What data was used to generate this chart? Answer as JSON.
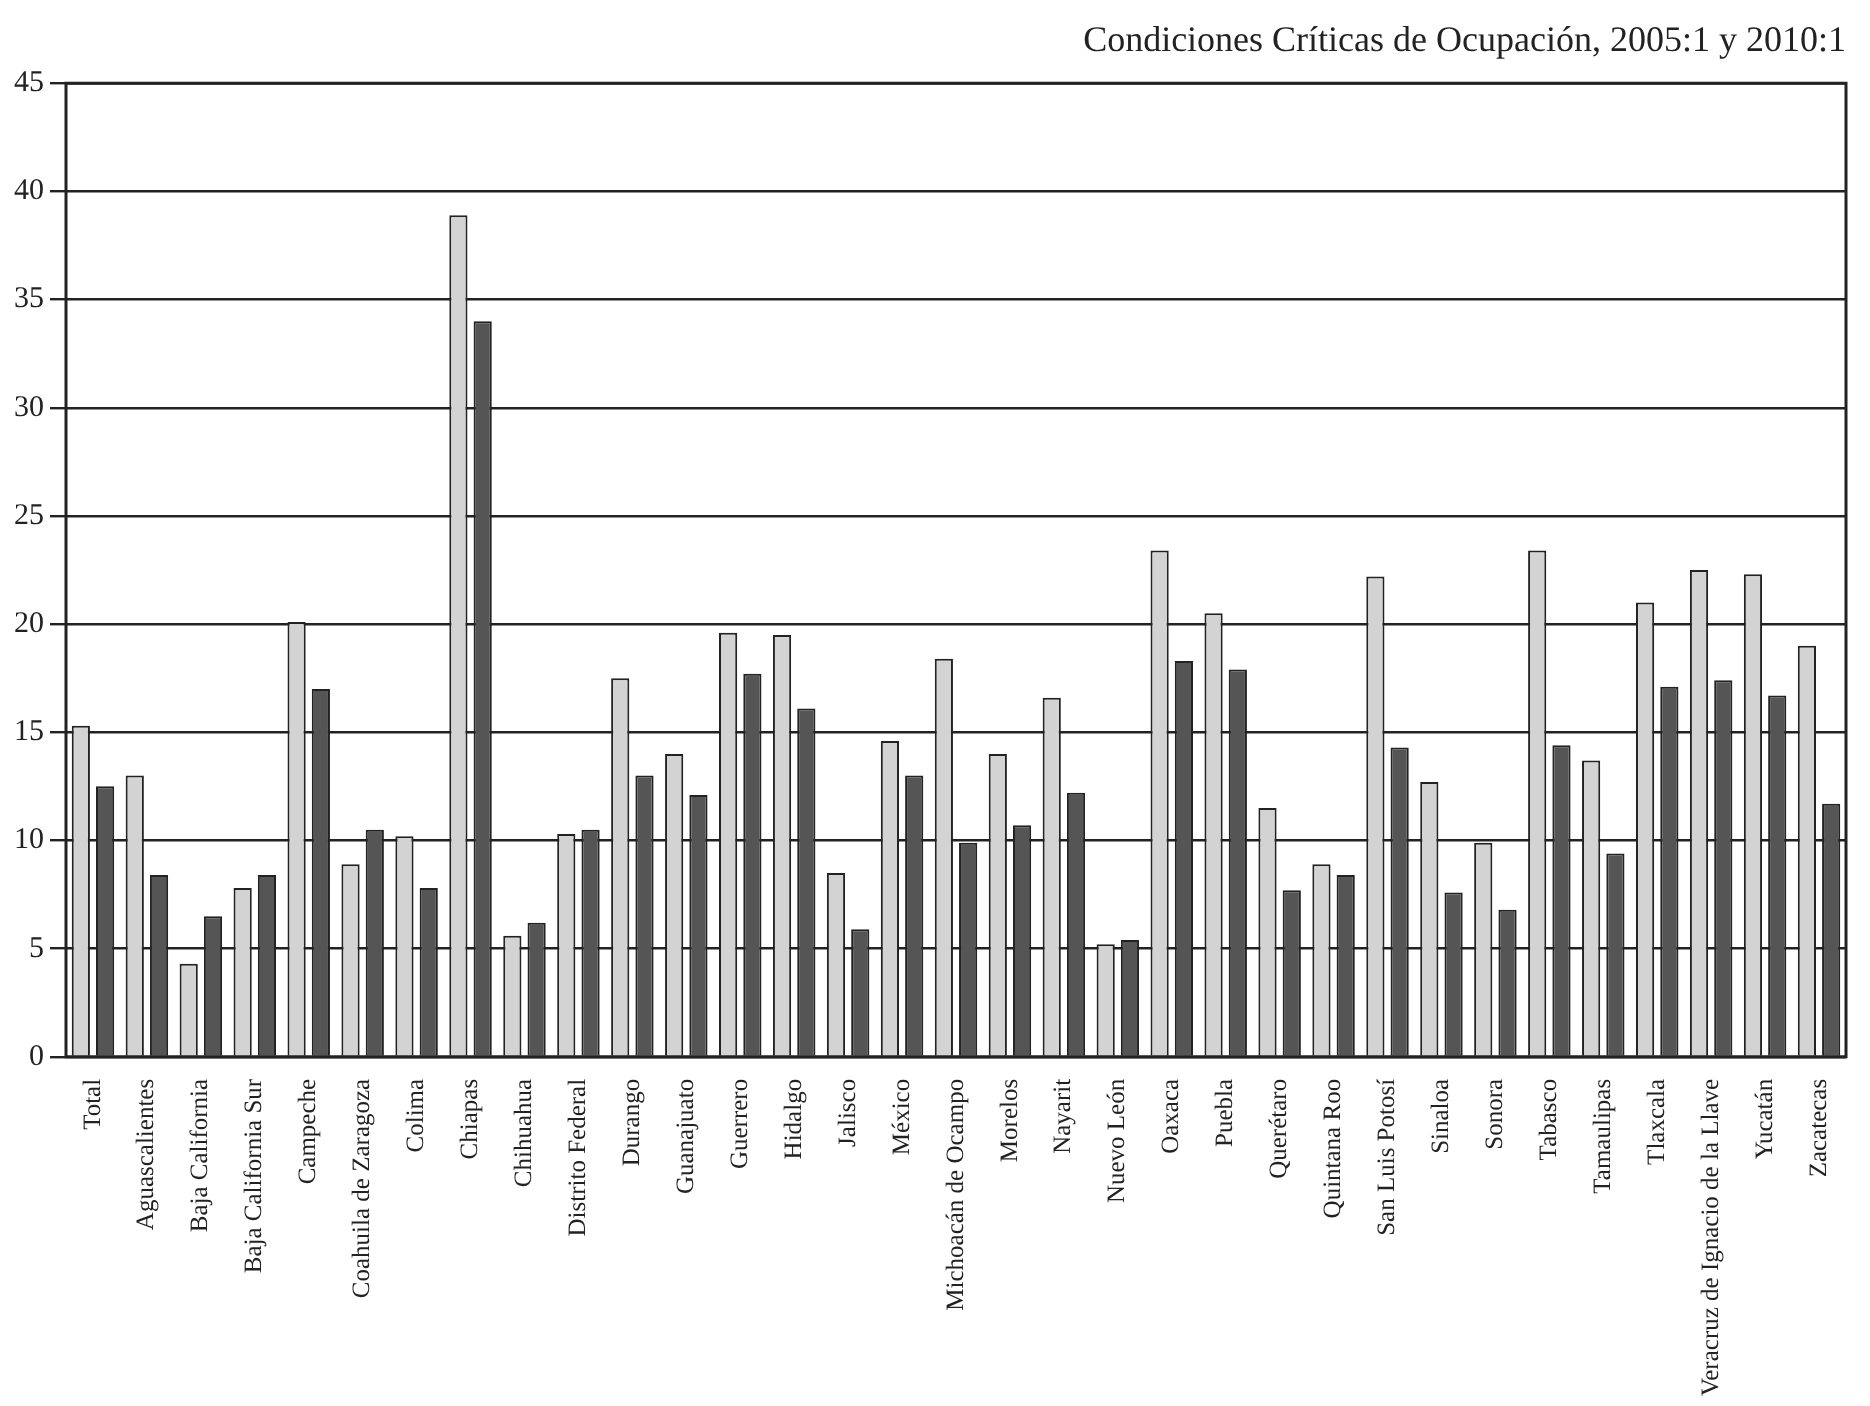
{
  "chart_data": {
    "type": "bar",
    "title": "Condiciones Críticas de Ocupación, 2005:1 y 2010:1",
    "categories": [
      "Total",
      "Aguascalientes",
      "Baja California",
      "Baja California Sur",
      "Campeche",
      "Coahuila de Zaragoza",
      "Colima",
      "Chiapas",
      "Chihuahua",
      "Distrito Federal",
      "Durango",
      "Guanajuato",
      "Guerrero",
      "Hidalgo",
      "Jalisco",
      "México",
      "Michoacán de Ocampo",
      "Morelos",
      "Nayarit",
      "Nuevo León",
      "Oaxaca",
      "Puebla",
      "Querétaro",
      "Quintana Roo",
      "San Luis Potosí",
      "Sinaloa",
      "Sonora",
      "Tabasco",
      "Tamaulipas",
      "Tlaxcala",
      "Veracruz de Ignacio de la Llave",
      "Yucatán",
      "Zacatecas"
    ],
    "series": [
      {
        "color": "#d3d3d3",
        "values": [
          15.3,
          13,
          4.3,
          7.8,
          20.1,
          8.9,
          10.2,
          38.9,
          5.6,
          10.3,
          17.5,
          14,
          19.6,
          19.5,
          8.5,
          14.6,
          18.4,
          14,
          16.6,
          5.2,
          23.4,
          20.5,
          11.5,
          8.9,
          22.2,
          12.7,
          9.9,
          23.4,
          13.7,
          21,
          22.5,
          22.3,
          19
        ]
      },
      {
        "color": "#555555",
        "values": [
          12.5,
          8.4,
          6.5,
          8.4,
          17,
          10.5,
          7.8,
          34,
          6.2,
          10.5,
          13,
          12.1,
          17.7,
          16.1,
          5.9,
          13,
          9.9,
          10.7,
          12.2,
          5.4,
          18.3,
          17.9,
          7.7,
          8.4,
          14.3,
          7.6,
          6.8,
          14.4,
          9.4,
          17.1,
          17.4,
          16.7,
          11.7
        ]
      }
    ],
    "ylim": [
      0,
      45
    ],
    "yticks": [
      0,
      5,
      10,
      15,
      20,
      25,
      30,
      35,
      40,
      45
    ],
    "grid": "y",
    "legend": false
  }
}
